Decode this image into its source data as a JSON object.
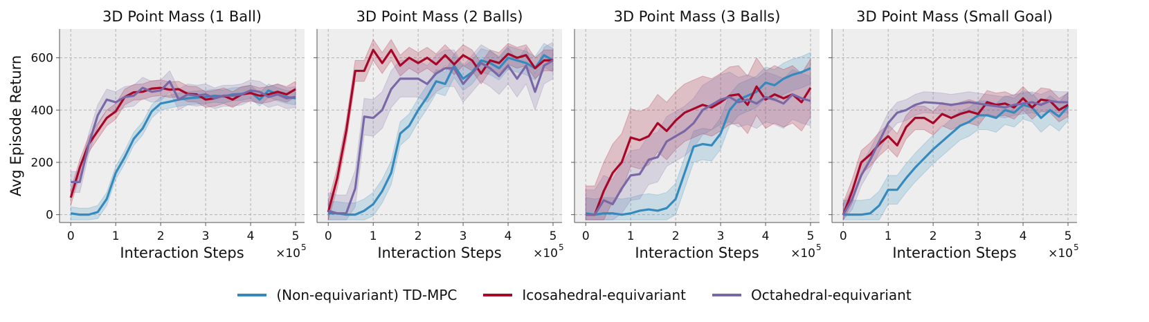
{
  "chart_data": [
    {
      "type": "line",
      "title": "3D Point Mass (1 Ball)",
      "xlabel": "Interaction Steps",
      "x_multiplier": "×10",
      "x_exponent": "5",
      "ylabel": "Avg Episode Return",
      "xlim": [
        -0.25,
        5.2
      ],
      "ylim": [
        -30,
        710
      ],
      "xticks": [
        0,
        1,
        2,
        3,
        4,
        5
      ],
      "yticks": [
        0,
        200,
        400,
        600
      ],
      "x": [
        0,
        0.2,
        0.4,
        0.6,
        0.8,
        1.0,
        1.2,
        1.4,
        1.6,
        1.8,
        2.0,
        2.2,
        2.4,
        2.6,
        2.8,
        3.0,
        3.2,
        3.4,
        3.6,
        3.8,
        4.0,
        4.2,
        4.4,
        4.6,
        4.8,
        5.0
      ],
      "series": [
        {
          "name": "(Non-equivariant) TD-MPC",
          "values": [
            5,
            0,
            0,
            10,
            60,
            160,
            220,
            290,
            330,
            395,
            425,
            432,
            440,
            445,
            448,
            450,
            455,
            452,
            460,
            462,
            470,
            440,
            475,
            460,
            450,
            445
          ],
          "band": 25
        },
        {
          "name": "Icosahedral-equivariant",
          "values": [
            65,
            180,
            270,
            320,
            370,
            395,
            450,
            468,
            470,
            482,
            485,
            478,
            480,
            462,
            460,
            440,
            445,
            455,
            440,
            460,
            465,
            455,
            460,
            470,
            460,
            480
          ],
          "band": 30
        },
        {
          "name": "Octahedral-equivariant",
          "values": [
            125,
            125,
            270,
            380,
            440,
            430,
            450,
            455,
            485,
            470,
            475,
            510,
            440,
            460,
            455,
            460,
            445,
            455,
            455,
            460,
            475,
            470,
            450,
            460,
            445,
            450
          ],
          "band": 40
        }
      ]
    },
    {
      "type": "line",
      "title": "3D Point Mass (2 Balls)",
      "xlabel": "Interaction Steps",
      "x_multiplier": "×10",
      "x_exponent": "5",
      "xlim": [
        -0.25,
        5.2
      ],
      "ylim": [
        -30,
        710
      ],
      "xticks": [
        0,
        1,
        2,
        3,
        4,
        5
      ],
      "yticks": [
        0,
        200,
        400,
        600
      ],
      "x": [
        0,
        0.2,
        0.4,
        0.6,
        0.8,
        1.0,
        1.2,
        1.4,
        1.6,
        1.8,
        2.0,
        2.2,
        2.4,
        2.6,
        2.8,
        3.0,
        3.2,
        3.4,
        3.6,
        3.8,
        4.0,
        4.2,
        4.4,
        4.6,
        4.8,
        5.0
      ],
      "series": [
        {
          "name": "(Non-equivariant) TD-MPC",
          "values": [
            5,
            5,
            0,
            0,
            15,
            40,
            90,
            160,
            310,
            340,
            400,
            450,
            510,
            500,
            570,
            520,
            545,
            590,
            580,
            560,
            600,
            590,
            580,
            560,
            610,
            590
          ],
          "band": 45
        },
        {
          "name": "Icosahedral-equivariant",
          "values": [
            10,
            140,
            320,
            550,
            550,
            630,
            580,
            630,
            570,
            600,
            580,
            600,
            575,
            610,
            575,
            610,
            590,
            540,
            590,
            580,
            615,
            600,
            610,
            560,
            590,
            590
          ],
          "band": 40
        },
        {
          "name": "Octahedral-equivariant",
          "values": [
            15,
            5,
            5,
            100,
            375,
            370,
            400,
            480,
            520,
            520,
            520,
            500,
            540,
            560,
            560,
            500,
            540,
            580,
            560,
            530,
            570,
            520,
            570,
            470,
            570,
            590
          ],
          "band": 70
        }
      ]
    },
    {
      "type": "line",
      "title": "3D Point Mass (3 Balls)",
      "xlabel": "Interaction Steps",
      "x_multiplier": "×10",
      "x_exponent": "5",
      "xlim": [
        -0.25,
        5.2
      ],
      "ylim": [
        -30,
        710
      ],
      "xticks": [
        0,
        1,
        2,
        3,
        4,
        5
      ],
      "yticks": [
        0,
        200,
        400,
        600
      ],
      "x": [
        0,
        0.2,
        0.4,
        0.6,
        0.8,
        1.0,
        1.2,
        1.4,
        1.6,
        1.8,
        2.0,
        2.2,
        2.4,
        2.6,
        2.8,
        3.0,
        3.2,
        3.4,
        3.6,
        3.8,
        4.0,
        4.2,
        4.4,
        4.6,
        4.8,
        5.0
      ],
      "series": [
        {
          "name": "(Non-equivariant) TD-MPC",
          "values": [
            5,
            0,
            5,
            5,
            0,
            5,
            15,
            20,
            15,
            25,
            60,
            160,
            260,
            270,
            265,
            310,
            400,
            440,
            455,
            470,
            505,
            495,
            520,
            535,
            545,
            560
          ],
          "band": 60
        },
        {
          "name": "Icosahedral-equivariant",
          "values": [
            0,
            0,
            90,
            160,
            200,
            295,
            285,
            300,
            350,
            320,
            360,
            390,
            405,
            420,
            410,
            430,
            455,
            460,
            420,
            490,
            440,
            460,
            445,
            460,
            430,
            485
          ],
          "band": 110
        },
        {
          "name": "Octahedral-equivariant",
          "values": [
            0,
            0,
            55,
            40,
            100,
            150,
            155,
            210,
            220,
            280,
            300,
            320,
            350,
            400,
            420,
            440,
            450,
            430,
            440,
            425,
            450,
            440,
            425,
            460,
            445,
            435
          ],
          "band": 95
        }
      ]
    },
    {
      "type": "line",
      "title": "3D Point Mass (Small Goal)",
      "xlabel": "Interaction Steps",
      "x_multiplier": "×10",
      "x_exponent": "5",
      "xlim": [
        -0.25,
        5.2
      ],
      "ylim": [
        -30,
        710
      ],
      "xticks": [
        0,
        1,
        2,
        3,
        4,
        5
      ],
      "yticks": [
        0,
        200,
        400,
        600
      ],
      "x": [
        0,
        0.2,
        0.4,
        0.6,
        0.8,
        1.0,
        1.2,
        1.4,
        1.6,
        1.8,
        2.0,
        2.2,
        2.4,
        2.6,
        2.8,
        3.0,
        3.2,
        3.4,
        3.6,
        3.8,
        4.0,
        4.2,
        4.4,
        4.6,
        4.8,
        5.0
      ],
      "series": [
        {
          "name": "(Non-equivariant) TD-MPC",
          "values": [
            0,
            0,
            0,
            5,
            35,
            95,
            95,
            140,
            180,
            215,
            250,
            280,
            310,
            340,
            355,
            380,
            380,
            370,
            400,
            390,
            420,
            410,
            370,
            400,
            375,
            415
          ],
          "band": 55
        },
        {
          "name": "Icosahedral-equivariant",
          "values": [
            0,
            90,
            200,
            230,
            270,
            300,
            265,
            335,
            370,
            370,
            350,
            385,
            370,
            385,
            395,
            385,
            430,
            420,
            425,
            410,
            445,
            410,
            440,
            435,
            400,
            420
          ],
          "band": 45
        },
        {
          "name": "Octahedral-equivariant",
          "values": [
            0,
            60,
            150,
            210,
            280,
            350,
            390,
            400,
            420,
            430,
            428,
            425,
            420,
            425,
            430,
            425,
            420,
            415,
            410,
            420,
            425,
            430,
            420,
            435,
            430,
            430
          ],
          "band": 40
        }
      ]
    }
  ],
  "legend": [
    {
      "label": "(Non-equivariant) TD-MPC",
      "color": "#348abd"
    },
    {
      "label": "Icosahedral-equivariant",
      "color": "#a60628"
    },
    {
      "label": "Octahedral-equivariant",
      "color": "#7a68a6"
    }
  ]
}
